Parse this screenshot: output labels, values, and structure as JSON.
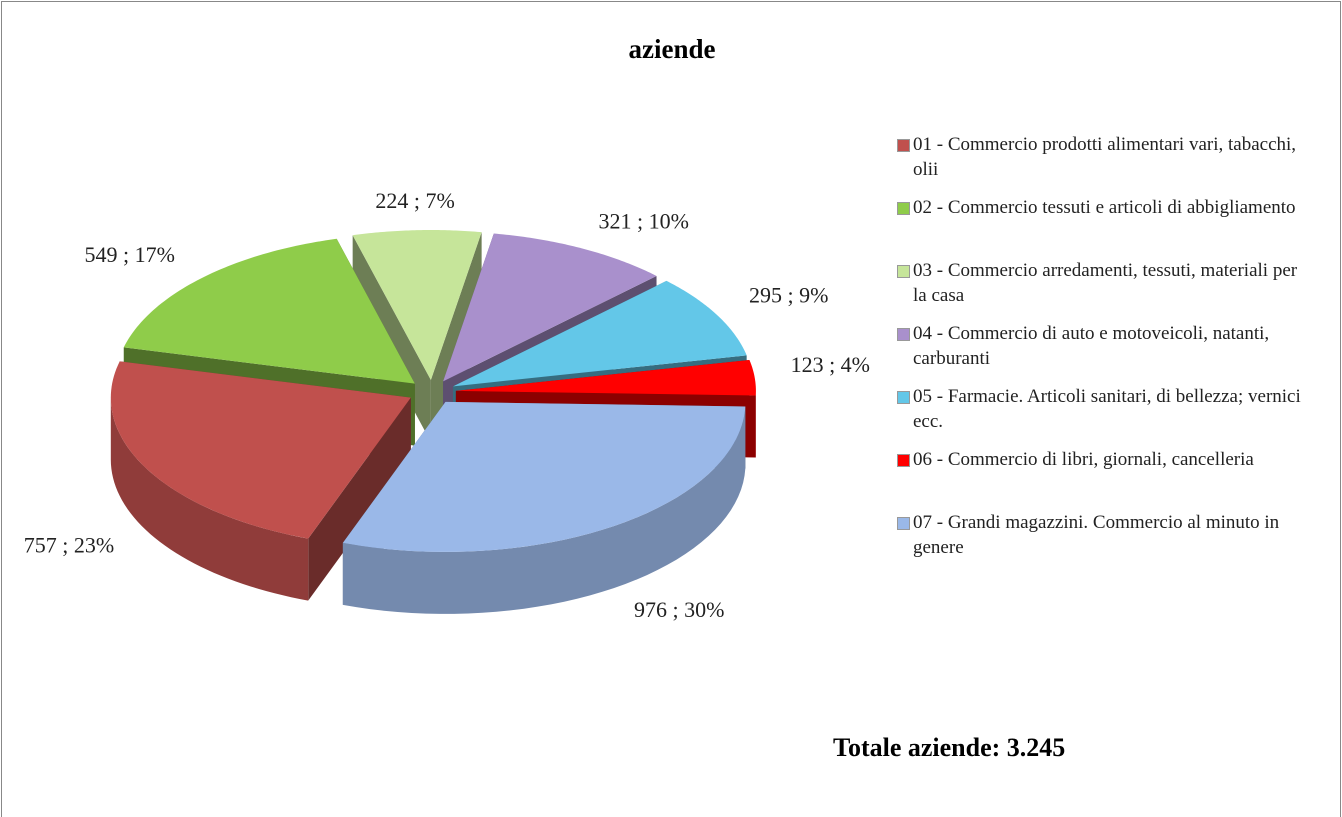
{
  "chart_data": {
    "type": "pie3d",
    "title": "aziende",
    "series": [
      {
        "name": "01 - Commercio prodotti alimentari vari, tabacchi, olii",
        "color": "#c0504d",
        "values": [
          757
        ],
        "value_labels": [
          "757 ; 23%"
        ]
      },
      {
        "name": "02 - Commercio tessuti e articoli di abbigliamento",
        "color": "#8fcc4a",
        "values": [
          549
        ],
        "value_labels": [
          "549 ; 17%"
        ]
      },
      {
        "name": "03 - Commercio arredamenti, tessuti, materiali per la casa",
        "color": "#c6e59a",
        "values": [
          224
        ],
        "value_labels": [
          "224 ; 7%"
        ]
      },
      {
        "name": "04 - Commercio di auto e motoveicoli, natanti, carburanti",
        "color": "#a990cc",
        "values": [
          321
        ],
        "value_labels": [
          "321 ; 10%"
        ]
      },
      {
        "name": "05 - Farmacie. Articoli sanitari, di bellezza; vernici ecc.",
        "color": "#63c7e8",
        "values": [
          295
        ],
        "value_labels": [
          "295 ; 9%"
        ]
      },
      {
        "name": "06 - Commercio di libri, giornali, cancelleria",
        "color": "#ff0000",
        "values": [
          123
        ],
        "value_labels": [
          "123 ; 4%"
        ]
      },
      {
        "name": "07 - Grandi magazzini. Commercio al minuto in genere",
        "color": "#9ab8e8",
        "values": [
          976
        ],
        "value_labels": [
          "976 ; 30%"
        ]
      }
    ],
    "annotation": "Totale aziende: 3.245",
    "legend": "right"
  }
}
